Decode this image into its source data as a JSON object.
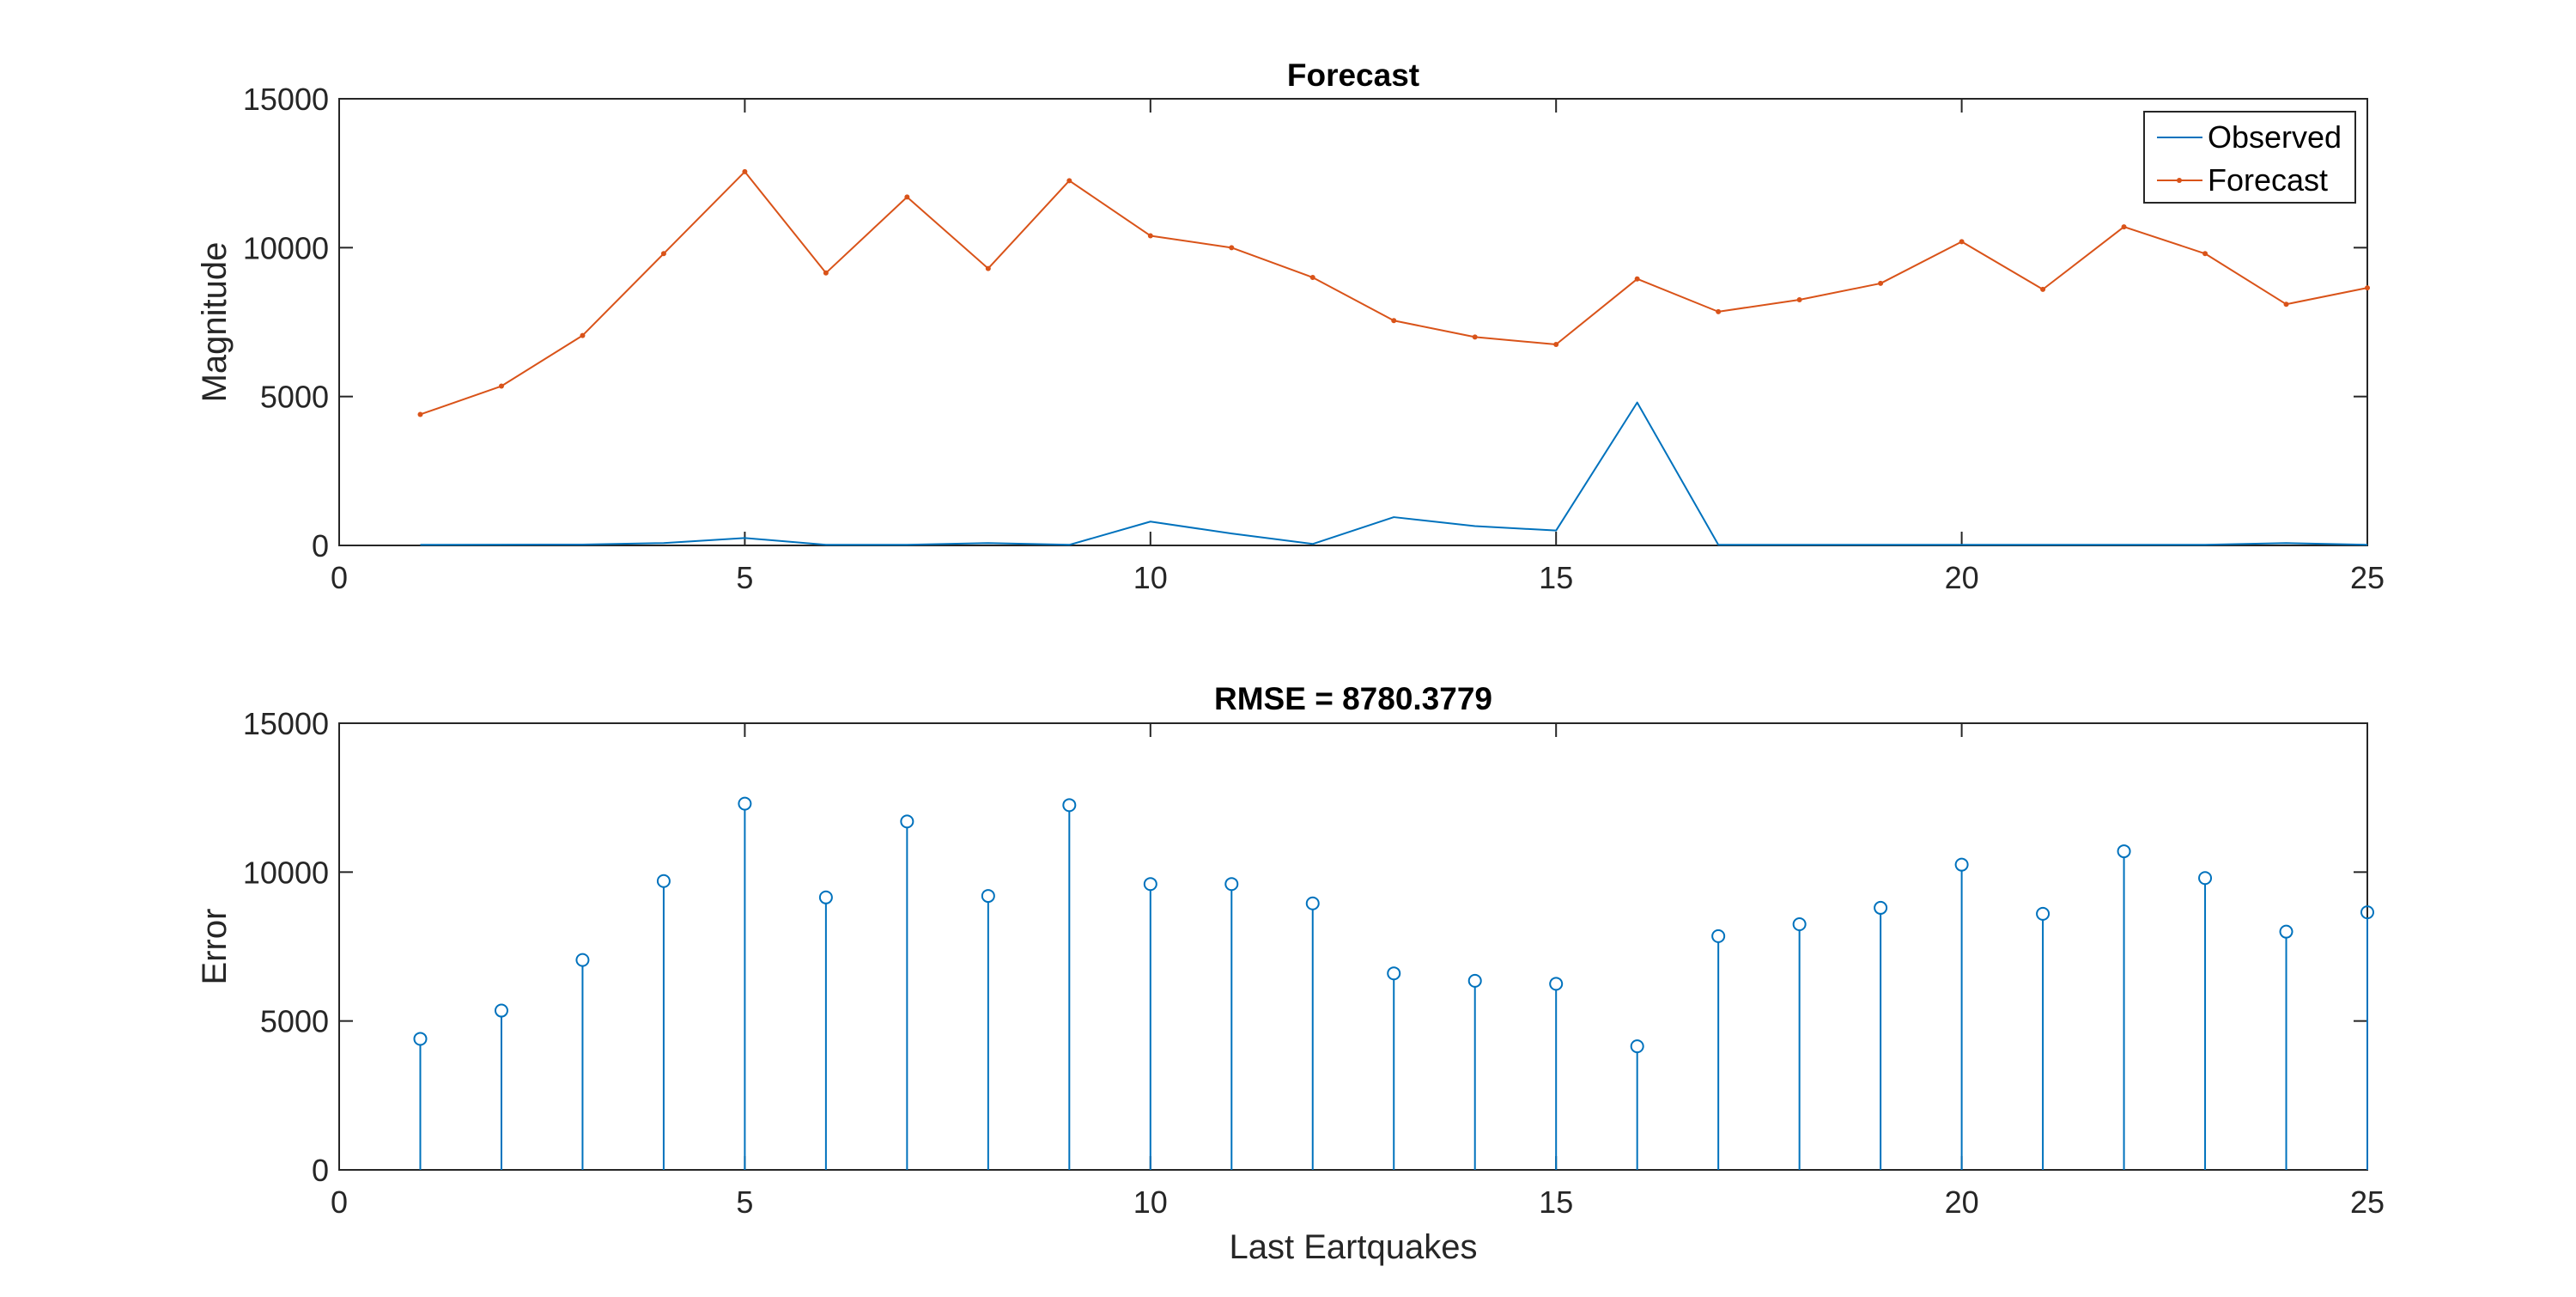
{
  "chart_data": [
    {
      "type": "line",
      "title": "Forecast",
      "xlabel": "",
      "ylabel": "Magnitude",
      "xlim": [
        0,
        25
      ],
      "ylim": [
        0,
        15000
      ],
      "xticks": [
        "0",
        "5",
        "10",
        "15",
        "20",
        "25"
      ],
      "yticks": [
        "0",
        "5000",
        "10000",
        "15000"
      ],
      "grid": false,
      "legend_position": "top-right",
      "x": [
        1,
        2,
        3,
        4,
        5,
        6,
        7,
        8,
        9,
        10,
        11,
        12,
        13,
        14,
        15,
        16,
        17,
        18,
        19,
        20,
        21,
        22,
        23,
        24,
        25
      ],
      "series": [
        {
          "name": "Observed",
          "color": "#0072BD",
          "values": [
            20,
            25,
            30,
            80,
            250,
            20,
            20,
            80,
            20,
            800,
            400,
            50,
            950,
            650,
            500,
            4800,
            20,
            20,
            20,
            20,
            20,
            20,
            20,
            80,
            20
          ]
        },
        {
          "name": "Forecast",
          "color": "#D95319",
          "values": [
            4400,
            5350,
            7050,
            9800,
            12550,
            9150,
            11700,
            9300,
            12250,
            10400,
            10000,
            9000,
            7550,
            7000,
            6750,
            8950,
            7850,
            8250,
            8800,
            10200,
            8600,
            10700,
            9800,
            8100,
            8650
          ]
        }
      ]
    },
    {
      "type": "stem",
      "title": "RMSE = 8780.3779",
      "xlabel": "Last Eartquakes",
      "ylabel": "Error",
      "xlim": [
        0,
        25
      ],
      "ylim": [
        0,
        15000
      ],
      "xticks": [
        "0",
        "5",
        "10",
        "15",
        "20",
        "25"
      ],
      "yticks": [
        "0",
        "5000",
        "10000",
        "15000"
      ],
      "grid": false,
      "color": "#0072BD",
      "x": [
        1,
        2,
        3,
        4,
        5,
        6,
        7,
        8,
        9,
        10,
        11,
        12,
        13,
        14,
        15,
        16,
        17,
        18,
        19,
        20,
        21,
        22,
        23,
        24,
        25
      ],
      "values": [
        4400,
        5350,
        7050,
        9700,
        12300,
        9150,
        11700,
        9200,
        12250,
        9600,
        9600,
        8950,
        6600,
        6350,
        6250,
        4150,
        7850,
        8250,
        8800,
        10250,
        8600,
        10700,
        9800,
        8000,
        8650
      ]
    }
  ]
}
